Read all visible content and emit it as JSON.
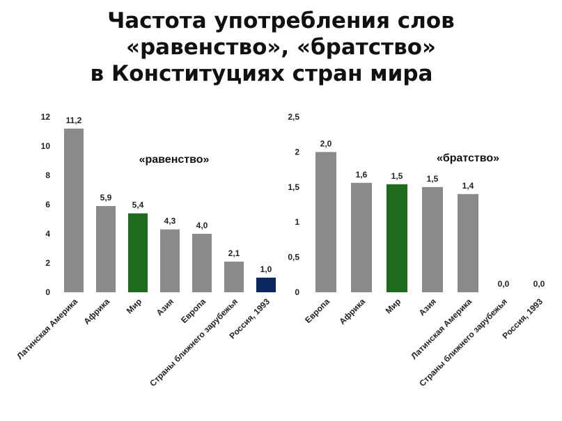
{
  "title": {
    "line1": "Частота употребления слов",
    "line2": "«равенство»,  «братство»",
    "line3": "в Конституциях стран мира"
  },
  "colors": {
    "bar_default": "#8a8a8a",
    "bar_world": "#1e6b1e",
    "bar_russia": "#0b2660",
    "russia_text": "#1f3f8a"
  },
  "chart_data": [
    {
      "type": "bar",
      "series_label": "«равенство»",
      "categories": [
        "Латинская Америка",
        "Африка",
        "Мир",
        "Азия",
        "Европа",
        "Страны ближнего зарубежья",
        "Россия, 1993"
      ],
      "values": [
        11.2,
        5.9,
        5.4,
        4.3,
        4.0,
        2.1,
        1.0
      ],
      "value_labels": [
        "11,2",
        "5,9",
        "5,4",
        "4,3",
        "4,0",
        "2,1",
        "1,0"
      ],
      "highlight": [
        "default",
        "default",
        "world",
        "default",
        "default",
        "default",
        "russia"
      ],
      "ylim": [
        0,
        12
      ],
      "yticks": [
        0,
        2,
        4,
        6,
        8,
        10,
        12
      ],
      "ytick_labels": [
        "0",
        "2",
        "4",
        "6",
        "8",
        "10",
        "12"
      ],
      "grid": false
    },
    {
      "type": "bar",
      "series_label": "«братство»",
      "categories": [
        "Европа",
        "Африка",
        "Мир",
        "Азия",
        "Латинская Америка",
        "Страны ближнего зарубежья",
        "Россия, 1993"
      ],
      "values": [
        2.0,
        1.56,
        1.54,
        1.5,
        1.4,
        0.0,
        0.0
      ],
      "value_labels": [
        "2,0",
        "1,6",
        "1,5",
        "1,5",
        "1,4",
        "0,0",
        "0,0"
      ],
      "highlight": [
        "default",
        "default",
        "world",
        "default",
        "default",
        "default",
        "russia"
      ],
      "ylim": [
        0,
        2.5
      ],
      "yticks": [
        0,
        0.5,
        1,
        1.5,
        2,
        2.5
      ],
      "ytick_labels": [
        "0",
        "0,5",
        "1",
        "1,5",
        "2",
        "2,5"
      ],
      "grid": false
    }
  ]
}
